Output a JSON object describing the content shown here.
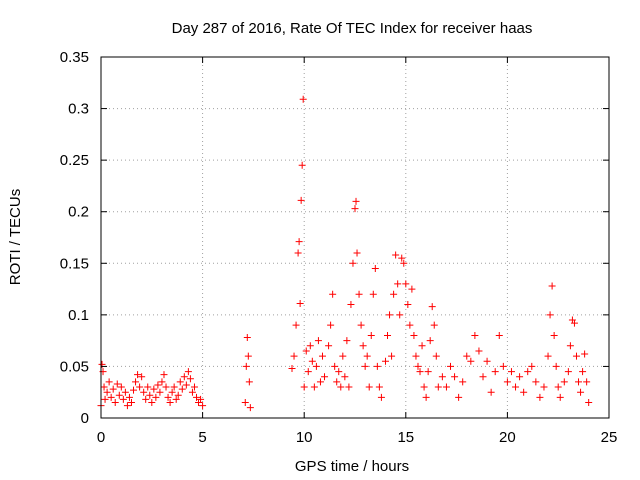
{
  "chart_data": {
    "type": "scatter",
    "title": "Day 287 of 2016, Rate Of TEC Index for receiver haas",
    "xlabel": "GPS time / hours",
    "ylabel": "ROTI / TECUs",
    "xlim": [
      0,
      25
    ],
    "ylim": [
      0,
      0.35
    ],
    "grid": true,
    "marker": "+",
    "color": "#ff0000",
    "x_ticks": [
      0,
      5,
      10,
      15,
      20,
      25
    ],
    "x_tick_labels": [
      "0",
      "5",
      "10",
      "15",
      "20",
      "25"
    ],
    "y_ticks": [
      0,
      0.05,
      0.1,
      0.15,
      0.2,
      0.25,
      0.3,
      0.35
    ],
    "y_tick_labels": [
      "0",
      "0.05",
      "0.1",
      "0.15",
      "0.2",
      "0.25",
      "0.3",
      "0.35"
    ],
    "series": [
      {
        "name": "ROTI",
        "points": [
          [
            0.0,
            0.012
          ],
          [
            0.05,
            0.052
          ],
          [
            0.1,
            0.045
          ],
          [
            0.15,
            0.03
          ],
          [
            0.2,
            0.018
          ],
          [
            0.3,
            0.025
          ],
          [
            0.4,
            0.035
          ],
          [
            0.5,
            0.02
          ],
          [
            0.6,
            0.028
          ],
          [
            0.7,
            0.015
          ],
          [
            0.8,
            0.033
          ],
          [
            0.9,
            0.022
          ],
          [
            1.0,
            0.03
          ],
          [
            1.1,
            0.018
          ],
          [
            1.2,
            0.025
          ],
          [
            1.3,
            0.012
          ],
          [
            1.4,
            0.02
          ],
          [
            1.5,
            0.015
          ],
          [
            1.6,
            0.027
          ],
          [
            1.7,
            0.035
          ],
          [
            1.8,
            0.042
          ],
          [
            1.9,
            0.03
          ],
          [
            2.0,
            0.04
          ],
          [
            2.1,
            0.025
          ],
          [
            2.2,
            0.018
          ],
          [
            2.3,
            0.03
          ],
          [
            2.4,
            0.022
          ],
          [
            2.5,
            0.015
          ],
          [
            2.6,
            0.028
          ],
          [
            2.7,
            0.02
          ],
          [
            2.8,
            0.032
          ],
          [
            2.9,
            0.025
          ],
          [
            3.0,
            0.035
          ],
          [
            3.1,
            0.042
          ],
          [
            3.2,
            0.03
          ],
          [
            3.3,
            0.02
          ],
          [
            3.4,
            0.015
          ],
          [
            3.5,
            0.025
          ],
          [
            3.6,
            0.03
          ],
          [
            3.7,
            0.018
          ],
          [
            3.8,
            0.022
          ],
          [
            3.9,
            0.035
          ],
          [
            4.0,
            0.028
          ],
          [
            4.1,
            0.04
          ],
          [
            4.2,
            0.032
          ],
          [
            4.3,
            0.045
          ],
          [
            4.4,
            0.038
          ],
          [
            4.5,
            0.025
          ],
          [
            4.6,
            0.03
          ],
          [
            4.7,
            0.02
          ],
          [
            4.8,
            0.015
          ],
          [
            4.9,
            0.018
          ],
          [
            5.0,
            0.012
          ],
          [
            7.1,
            0.015
          ],
          [
            7.15,
            0.05
          ],
          [
            7.2,
            0.078
          ],
          [
            7.25,
            0.06
          ],
          [
            7.3,
            0.035
          ],
          [
            7.35,
            0.01
          ],
          [
            9.4,
            0.048
          ],
          [
            9.5,
            0.06
          ],
          [
            9.6,
            0.09
          ],
          [
            9.7,
            0.16
          ],
          [
            9.75,
            0.171
          ],
          [
            9.8,
            0.111
          ],
          [
            9.85,
            0.211
          ],
          [
            9.9,
            0.245
          ],
          [
            9.95,
            0.309
          ],
          [
            10.0,
            0.03
          ],
          [
            10.1,
            0.065
          ],
          [
            10.2,
            0.045
          ],
          [
            10.3,
            0.07
          ],
          [
            10.4,
            0.055
          ],
          [
            10.5,
            0.03
          ],
          [
            10.6,
            0.05
          ],
          [
            10.7,
            0.075
          ],
          [
            10.8,
            0.035
          ],
          [
            10.9,
            0.06
          ],
          [
            11.0,
            0.04
          ],
          [
            11.2,
            0.07
          ],
          [
            11.3,
            0.09
          ],
          [
            11.4,
            0.12
          ],
          [
            11.5,
            0.05
          ],
          [
            11.6,
            0.035
          ],
          [
            11.7,
            0.045
          ],
          [
            11.8,
            0.03
          ],
          [
            11.9,
            0.06
          ],
          [
            12.0,
            0.04
          ],
          [
            12.1,
            0.075
          ],
          [
            12.2,
            0.03
          ],
          [
            12.3,
            0.11
          ],
          [
            12.4,
            0.15
          ],
          [
            12.5,
            0.203
          ],
          [
            12.55,
            0.21
          ],
          [
            12.6,
            0.16
          ],
          [
            12.7,
            0.12
          ],
          [
            12.8,
            0.09
          ],
          [
            12.9,
            0.07
          ],
          [
            13.0,
            0.05
          ],
          [
            13.1,
            0.06
          ],
          [
            13.2,
            0.03
          ],
          [
            13.3,
            0.08
          ],
          [
            13.4,
            0.12
          ],
          [
            13.5,
            0.145
          ],
          [
            13.6,
            0.05
          ],
          [
            13.7,
            0.03
          ],
          [
            13.8,
            0.02
          ],
          [
            14.0,
            0.055
          ],
          [
            14.1,
            0.08
          ],
          [
            14.2,
            0.1
          ],
          [
            14.3,
            0.06
          ],
          [
            14.4,
            0.12
          ],
          [
            14.5,
            0.158
          ],
          [
            14.6,
            0.13
          ],
          [
            14.7,
            0.1
          ],
          [
            14.8,
            0.155
          ],
          [
            14.9,
            0.15
          ],
          [
            15.0,
            0.13
          ],
          [
            15.1,
            0.11
          ],
          [
            15.2,
            0.09
          ],
          [
            15.3,
            0.125
          ],
          [
            15.4,
            0.08
          ],
          [
            15.5,
            0.06
          ],
          [
            15.6,
            0.05
          ],
          [
            15.7,
            0.045
          ],
          [
            15.8,
            0.07
          ],
          [
            15.9,
            0.03
          ],
          [
            16.0,
            0.02
          ],
          [
            16.1,
            0.045
          ],
          [
            16.2,
            0.075
          ],
          [
            16.3,
            0.108
          ],
          [
            16.4,
            0.09
          ],
          [
            16.5,
            0.06
          ],
          [
            16.6,
            0.03
          ],
          [
            16.8,
            0.04
          ],
          [
            17.0,
            0.03
          ],
          [
            17.2,
            0.05
          ],
          [
            17.4,
            0.04
          ],
          [
            17.6,
            0.02
          ],
          [
            17.8,
            0.035
          ],
          [
            18.0,
            0.06
          ],
          [
            18.2,
            0.055
          ],
          [
            18.4,
            0.08
          ],
          [
            18.6,
            0.065
          ],
          [
            18.8,
            0.04
          ],
          [
            19.0,
            0.055
          ],
          [
            19.2,
            0.025
          ],
          [
            19.4,
            0.045
          ],
          [
            19.6,
            0.08
          ],
          [
            19.8,
            0.05
          ],
          [
            20.0,
            0.035
          ],
          [
            20.2,
            0.045
          ],
          [
            20.4,
            0.03
          ],
          [
            20.6,
            0.04
          ],
          [
            20.8,
            0.025
          ],
          [
            21.0,
            0.045
          ],
          [
            21.2,
            0.05
          ],
          [
            21.4,
            0.035
          ],
          [
            21.6,
            0.02
          ],
          [
            21.8,
            0.03
          ],
          [
            22.0,
            0.06
          ],
          [
            22.1,
            0.1
          ],
          [
            22.2,
            0.128
          ],
          [
            22.3,
            0.08
          ],
          [
            22.4,
            0.05
          ],
          [
            22.5,
            0.03
          ],
          [
            22.6,
            0.02
          ],
          [
            22.8,
            0.035
          ],
          [
            23.0,
            0.045
          ],
          [
            23.1,
            0.07
          ],
          [
            23.2,
            0.095
          ],
          [
            23.3,
            0.092
          ],
          [
            23.4,
            0.06
          ],
          [
            23.5,
            0.035
          ],
          [
            23.6,
            0.025
          ],
          [
            23.7,
            0.045
          ],
          [
            23.8,
            0.062
          ],
          [
            23.9,
            0.035
          ],
          [
            24.0,
            0.015
          ]
        ]
      }
    ]
  }
}
